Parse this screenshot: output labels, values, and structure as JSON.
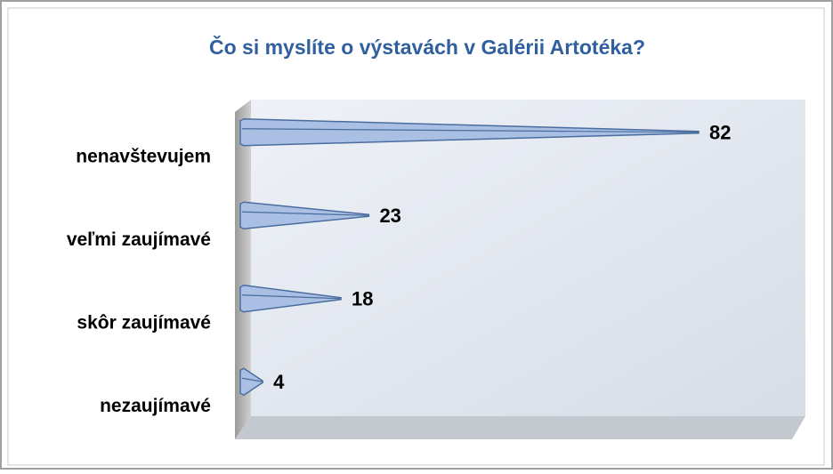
{
  "chart_data": {
    "type": "bar",
    "orientation": "horizontal",
    "title": "Čo si myslíte o výstavách v Galérii Artotéka?",
    "categories": [
      "nenavštevujem",
      "veľmi zaujímavé",
      "skôr zaujímavé",
      "nezaujímavé"
    ],
    "values": [
      82,
      23,
      18,
      4
    ],
    "color": "#a9bfe3"
  }
}
